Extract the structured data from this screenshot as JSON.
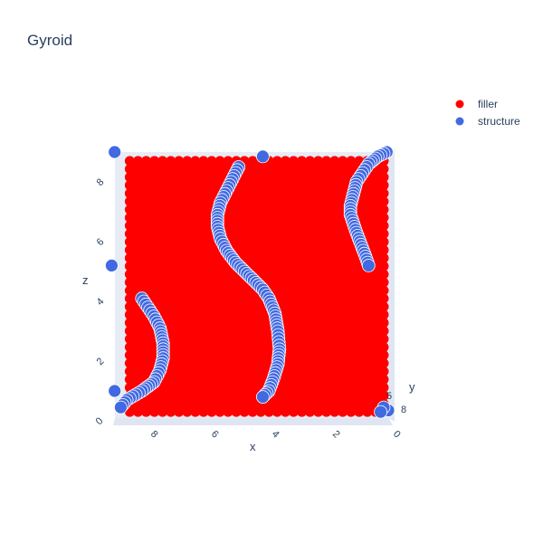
{
  "chart_data": {
    "type": "scatter",
    "subtype": "scatter3d",
    "title": "Gyroid",
    "axes": {
      "x": {
        "label": "x",
        "range": [
          0,
          9
        ],
        "ticks": [
          "0",
          "2",
          "4",
          "6",
          "8"
        ]
      },
      "y": {
        "label": "y",
        "ticks": [
          "5",
          "8"
        ]
      },
      "z": {
        "label": "z",
        "range": [
          0,
          9
        ],
        "ticks": [
          "0",
          "2",
          "4",
          "6",
          "8"
        ]
      }
    },
    "legend": {
      "position": "top-right",
      "items": [
        {
          "name": "filler",
          "color": "#ff0000"
        },
        {
          "name": "structure",
          "color": "#4169e1"
        }
      ]
    },
    "series": [
      {
        "name": "filler",
        "color": "#ff0000",
        "region": {
          "x": [
            0.3,
            8.7
          ],
          "z": [
            0.3,
            8.7
          ]
        }
      },
      {
        "name": "structure",
        "color": "#4169e1",
        "curves": [
          {
            "points": [
              [
                8.3,
                4.1
              ],
              [
                8.1,
                3.8
              ],
              [
                7.9,
                3.5
              ],
              [
                7.7,
                3.1
              ],
              [
                7.6,
                2.6
              ],
              [
                7.6,
                2.1
              ],
              [
                7.7,
                1.7
              ],
              [
                7.9,
                1.3
              ],
              [
                8.3,
                1.0
              ],
              [
                8.8,
                0.7
              ],
              [
                9.0,
                0.45
              ]
            ]
          },
          {
            "points": [
              [
                5.1,
                8.5
              ],
              [
                5.3,
                8.1
              ],
              [
                5.5,
                7.7
              ],
              [
                5.7,
                7.3
              ],
              [
                5.8,
                6.9
              ],
              [
                5.8,
                6.5
              ],
              [
                5.7,
                6.1
              ],
              [
                5.5,
                5.7
              ],
              [
                5.2,
                5.3
              ],
              [
                4.9,
                5.0
              ],
              [
                4.6,
                4.7
              ],
              [
                4.3,
                4.4
              ],
              [
                4.1,
                4.1
              ],
              [
                3.9,
                3.6
              ],
              [
                3.8,
                3.0
              ],
              [
                3.75,
                2.4
              ],
              [
                3.8,
                1.9
              ],
              [
                3.95,
                1.4
              ],
              [
                4.1,
                1.0
              ],
              [
                4.3,
                0.8
              ]
            ]
          },
          {
            "points": [
              [
                0.2,
                9.0
              ],
              [
                0.5,
                8.85
              ],
              [
                0.8,
                8.6
              ],
              [
                1.0,
                8.3
              ],
              [
                1.2,
                8.0
              ],
              [
                1.3,
                7.6
              ],
              [
                1.4,
                7.2
              ],
              [
                1.4,
                6.9
              ],
              [
                1.3,
                6.6
              ],
              [
                1.2,
                6.3
              ],
              [
                1.05,
                5.9
              ],
              [
                0.9,
                5.5
              ],
              [
                0.8,
                5.2
              ]
            ]
          }
        ],
        "points": [
          [
            9.2,
            9.0
          ],
          [
            9.2,
            1.0
          ],
          [
            9.3,
            5.2
          ],
          [
            0.15,
            0.35
          ],
          [
            0.3,
            0.45
          ],
          [
            0.4,
            0.3
          ],
          [
            4.3,
            8.85
          ]
        ]
      }
    ]
  }
}
